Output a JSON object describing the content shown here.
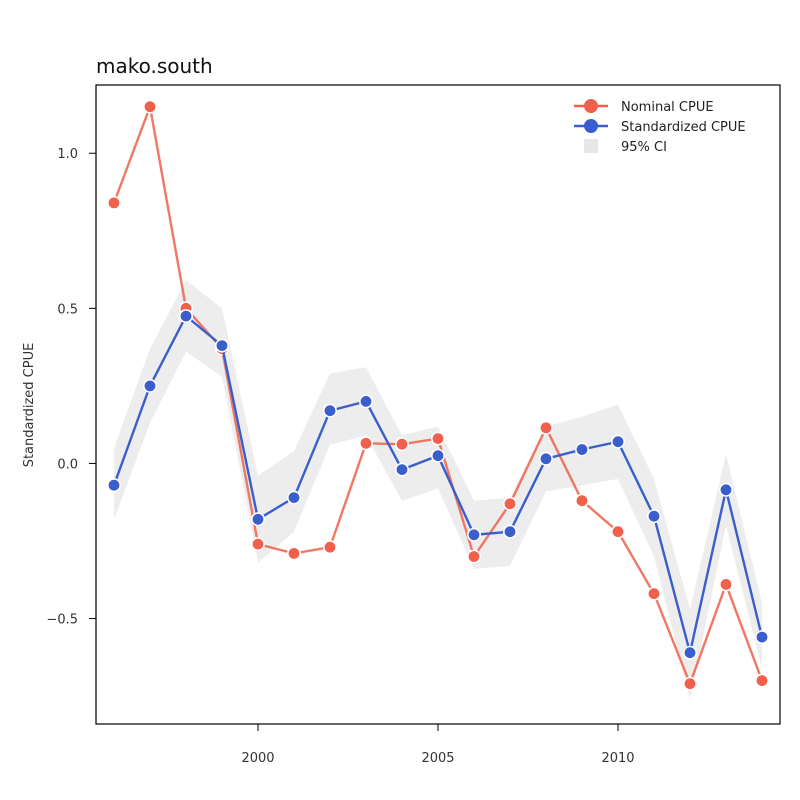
{
  "chart_data": {
    "type": "line",
    "title": "mako.south",
    "xlabel": "",
    "ylabel": "Standardized CPUE",
    "xlim": [
      1995.5,
      2014.5
    ],
    "ylim": [
      -0.84,
      1.22
    ],
    "x_ticks": [
      2000,
      2005,
      2010
    ],
    "y_ticks": [
      -0.5,
      0.0,
      0.5,
      1.0
    ],
    "y_tick_labels": [
      "−0.5",
      "0.0",
      "0.5",
      "1.0"
    ],
    "legend_position": "top-right",
    "legend": [
      {
        "label": "Nominal CPUE",
        "kind": "line-point",
        "color": "#f0604a"
      },
      {
        "label": "Standardized CPUE",
        "kind": "line-point",
        "color": "#3a5fcd"
      },
      {
        "label": "95% CI",
        "kind": "band",
        "color": "#e6e6e6"
      }
    ],
    "x": [
      1996,
      1997,
      1998,
      1999,
      2000,
      2001,
      2002,
      2003,
      2004,
      2005,
      2006,
      2007,
      2008,
      2009,
      2010,
      2011,
      2012,
      2013,
      2014
    ],
    "series": [
      {
        "name": "Nominal CPUE",
        "color": "#f0604a",
        "values": [
          0.84,
          1.15,
          0.5,
          0.37,
          -0.26,
          -0.29,
          -0.27,
          0.065,
          0.062,
          0.08,
          -0.3,
          -0.13,
          0.115,
          -0.12,
          -0.22,
          -0.42,
          -0.71,
          -0.39,
          -0.7
        ]
      },
      {
        "name": "Standardized CPUE",
        "color": "#3a5fcd",
        "values": [
          -0.07,
          0.25,
          0.475,
          0.38,
          -0.18,
          -0.11,
          0.17,
          0.2,
          -0.02,
          0.025,
          -0.23,
          -0.22,
          0.015,
          0.045,
          0.07,
          -0.17,
          -0.61,
          -0.085,
          -0.56
        ]
      }
    ],
    "ci_band": {
      "name": "95% CI",
      "color": "#ededed",
      "lower": [
        -0.18,
        0.13,
        0.36,
        0.28,
        -0.32,
        -0.22,
        0.06,
        0.09,
        -0.12,
        -0.08,
        -0.34,
        -0.33,
        -0.09,
        -0.07,
        -0.05,
        -0.3,
        -0.76,
        -0.2,
        -0.66
      ],
      "upper": [
        0.05,
        0.37,
        0.59,
        0.5,
        -0.04,
        0.04,
        0.29,
        0.31,
        0.09,
        0.12,
        -0.12,
        -0.11,
        0.12,
        0.15,
        0.19,
        -0.05,
        -0.47,
        0.03,
        -0.45
      ]
    }
  }
}
